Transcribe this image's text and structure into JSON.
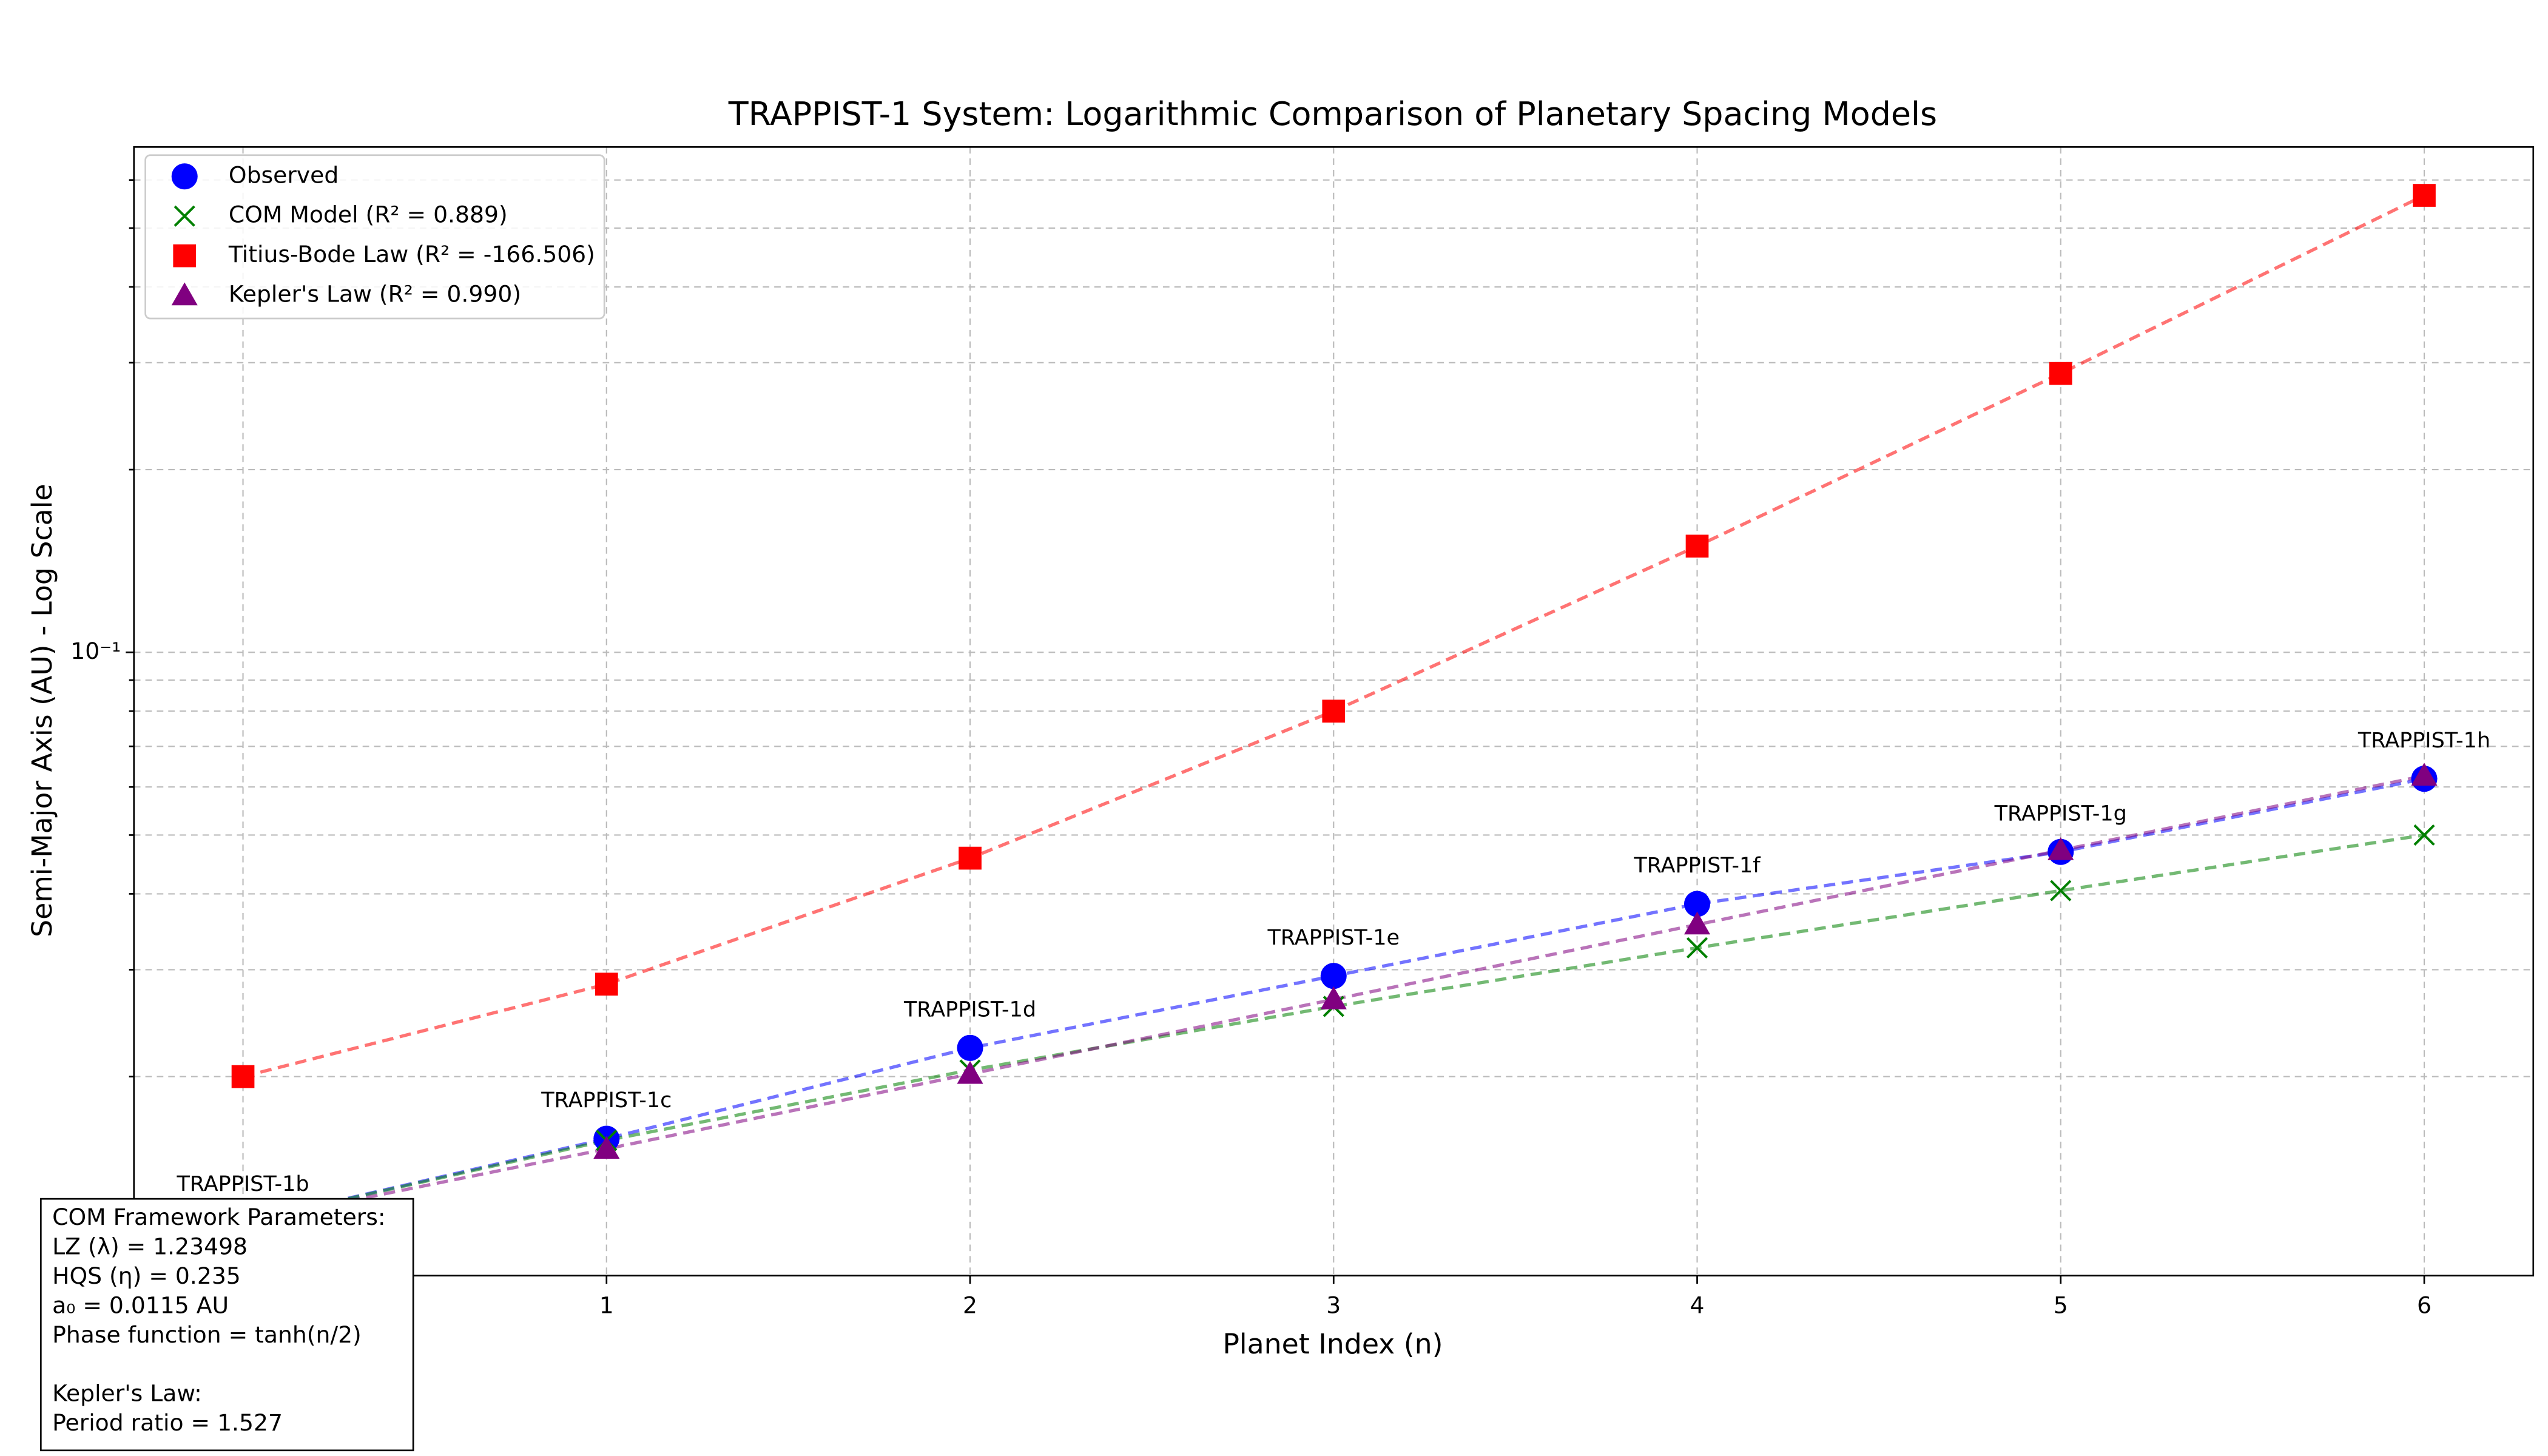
{
  "chart_data": {
    "type": "line",
    "title": "TRAPPIST-1 System: Logarithmic Comparison of Planetary Spacing Models",
    "x_label": "Planet Index (n)",
    "y_label": "Semi-Major Axis (AU) - Log Scale",
    "x": [
      0,
      1,
      2,
      3,
      4,
      5,
      6
    ],
    "xlim": [
      -0.3,
      6.3
    ],
    "xticks": [
      0,
      1,
      2,
      3,
      4,
      5,
      6
    ],
    "ylim": [
      0.0094,
      0.68
    ],
    "yticks": [
      {
        "value": 0.1,
        "label": "10⁻¹"
      }
    ],
    "yminorticks": [
      0.02,
      0.03,
      0.04,
      0.05,
      0.06,
      0.07,
      0.08,
      0.09,
      0.2,
      0.3,
      0.4,
      0.5,
      0.6
    ],
    "y_scale": "log",
    "grid": true,
    "legend": "upper left",
    "series": [
      {
        "name": "Observed",
        "color": "#0000ff",
        "marker": "circle",
        "values": [
          0.0115,
          0.0158,
          0.0223,
          0.0293,
          0.0385,
          0.0469,
          0.0619
        ]
      },
      {
        "name": "COM Model (R² = 0.889)",
        "color": "#008000",
        "marker": "x",
        "values": [
          0.0115,
          0.0157,
          0.0205,
          0.0261,
          0.0326,
          0.0405,
          0.05
        ]
      },
      {
        "name": "Titius-Bode Law (R² = -166.506)",
        "color": "#ff0000",
        "marker": "square",
        "values": [
          0.02,
          0.0284,
          0.0458,
          0.08,
          0.1496,
          0.288,
          0.566
        ]
      },
      {
        "name": "Kepler's Law (R² = 0.990)",
        "color": "#800080",
        "marker": "triangle",
        "values": [
          0.0115,
          0.0152,
          0.0202,
          0.0268,
          0.0356,
          0.0472,
          0.0626
        ]
      }
    ],
    "point_labels": [
      "TRAPPIST-1b",
      "TRAPPIST-1c",
      "TRAPPIST-1d",
      "TRAPPIST-1e",
      "TRAPPIST-1f",
      "TRAPPIST-1g",
      "TRAPPIST-1h"
    ],
    "parameters_box": {
      "lines": [
        "COM Framework Parameters:",
        "LZ (λ) = 1.23498",
        "HQS (η) = 0.235",
        "a₀ = 0.0115 AU",
        "Phase function = tanh(n/2)"
      ],
      "kepler_lines": [
        "Kepler's Law:",
        "Period ratio = 1.527"
      ]
    }
  }
}
